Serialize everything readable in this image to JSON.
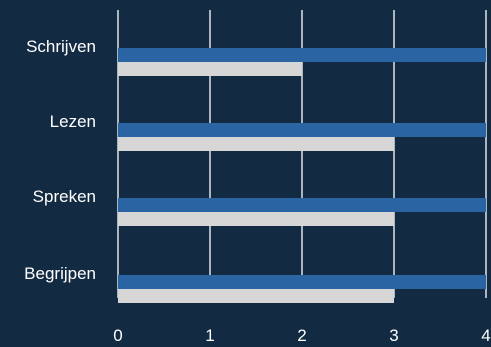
{
  "chart_data": {
    "type": "bar",
    "orientation": "horizontal",
    "title": "",
    "xlabel": "",
    "ylabel": "",
    "categories": [
      "Schrijven",
      "Lezen",
      "Spreken",
      "Begrijpen"
    ],
    "series": [
      {
        "values": [
          4,
          4,
          4,
          4
        ],
        "color": "#2a64a3"
      },
      {
        "values": [
          2,
          3,
          3,
          3
        ],
        "color": "#d6d6d6"
      }
    ],
    "xlim": [
      0,
      4
    ],
    "xticks": [
      "0",
      "1",
      "2",
      "3",
      "4"
    ],
    "grid": "vertical",
    "legend": "none",
    "background": "#122a42",
    "text_color": "#ffffff",
    "grid_color": "#ffffff"
  }
}
